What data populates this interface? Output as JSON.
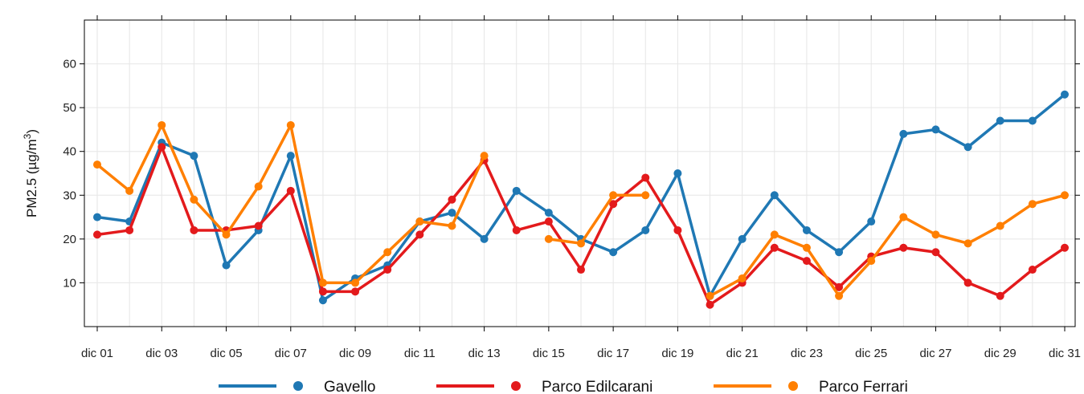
{
  "chart_data": {
    "type": "line",
    "title": "",
    "xlabel": "",
    "ylabel": "PM2.5 (µg/m3)",
    "ylabel_main": "PM2.5 (µg/m",
    "ylabel_sup": "3",
    "ylabel_close": ")",
    "ylim": [
      0,
      70
    ],
    "yticks": [
      10,
      20,
      30,
      40,
      50,
      60
    ],
    "x": [
      "dic 01",
      "dic 02",
      "dic 03",
      "dic 04",
      "dic 05",
      "dic 06",
      "dic 07",
      "dic 08",
      "dic 09",
      "dic 10",
      "dic 11",
      "dic 12",
      "dic 13",
      "dic 14",
      "dic 15",
      "dic 16",
      "dic 17",
      "dic 18",
      "dic 19",
      "dic 20",
      "dic 21",
      "dic 22",
      "dic 23",
      "dic 24",
      "dic 25",
      "dic 26",
      "dic 27",
      "dic 28",
      "dic 29",
      "dic 30",
      "dic 31"
    ],
    "xticks": [
      "dic 01",
      "dic 03",
      "dic 05",
      "dic 07",
      "dic 09",
      "dic 11",
      "dic 13",
      "dic 15",
      "dic 17",
      "dic 19",
      "dic 21",
      "dic 23",
      "dic 25",
      "dic 27",
      "dic 29",
      "dic 31"
    ],
    "grid": true,
    "legend_position": "bottom",
    "series": [
      {
        "name": "Gavello",
        "color": "#1f78b4",
        "values": [
          25,
          24,
          42,
          39,
          14,
          22,
          39,
          6,
          11,
          14,
          24,
          26,
          20,
          31,
          26,
          20,
          17,
          22,
          35,
          7,
          20,
          30,
          22,
          17,
          24,
          44,
          45,
          41,
          47,
          47,
          53
        ]
      },
      {
        "name": "Parco Edilcarani",
        "color": "#e31a1c",
        "values": [
          21,
          22,
          41,
          22,
          22,
          23,
          31,
          8,
          8,
          13,
          21,
          29,
          38,
          22,
          24,
          13,
          28,
          34,
          22,
          5,
          10,
          18,
          15,
          9,
          16,
          18,
          17,
          10,
          7,
          13,
          18
        ]
      },
      {
        "name": "Parco Ferrari",
        "color": "#ff7f00",
        "values": [
          37,
          31,
          46,
          29,
          21,
          32,
          46,
          10,
          10,
          17,
          24,
          23,
          39,
          null,
          20,
          19,
          30,
          30,
          null,
          7,
          11,
          21,
          18,
          7,
          15,
          25,
          21,
          19,
          23,
          28,
          30
        ]
      }
    ]
  }
}
